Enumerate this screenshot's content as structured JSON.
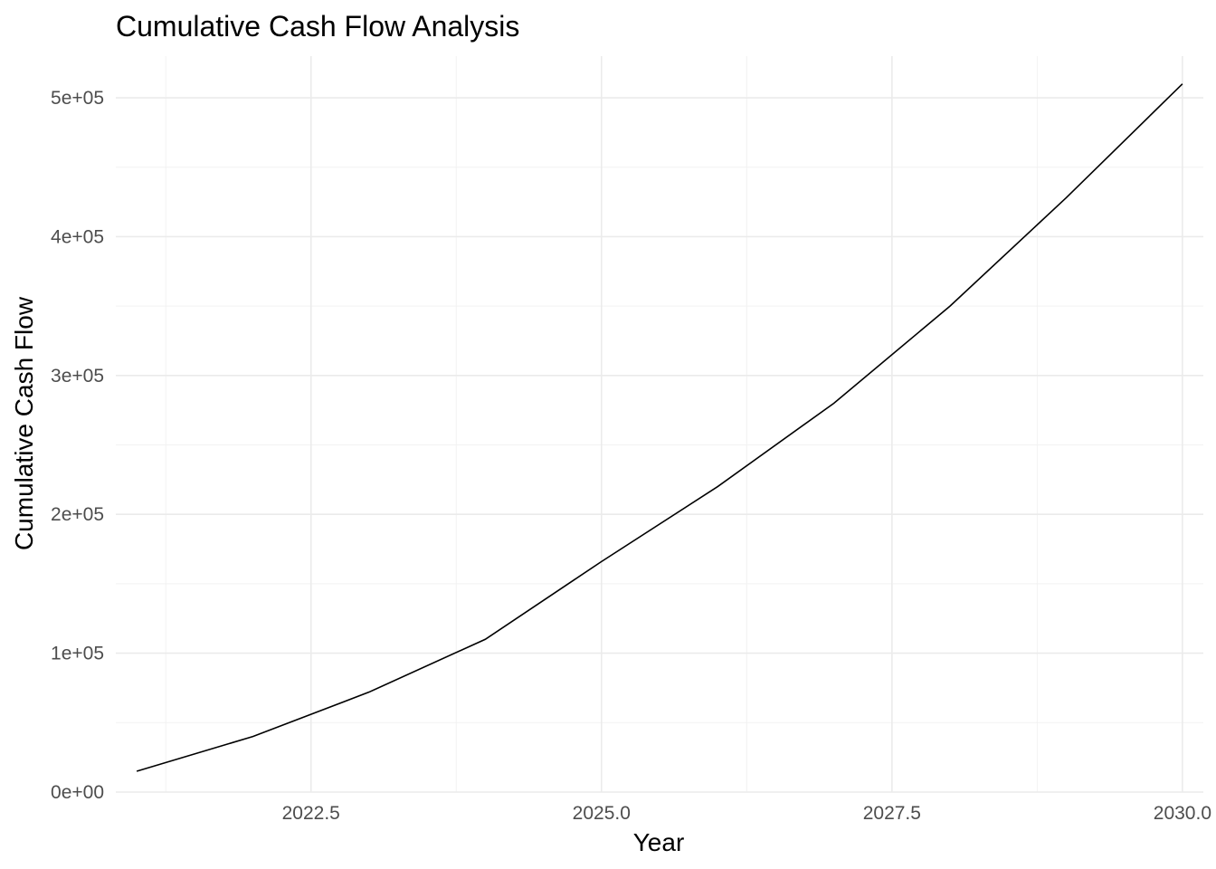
{
  "chart_data": {
    "type": "line",
    "title": "Cumulative Cash Flow Analysis",
    "xlabel": "Year",
    "ylabel": "Cumulative Cash Flow",
    "xlim": [
      2020.82,
      2030.18
    ],
    "ylim": [
      0,
      530000
    ],
    "x_ticks": [
      2022.5,
      2025.0,
      2027.5,
      2030.0
    ],
    "x_tick_labels": [
      "2022.5",
      "2025.0",
      "2027.5",
      "2030.0"
    ],
    "x_minor_ticks": [
      2021.25,
      2023.75,
      2026.25,
      2028.75
    ],
    "y_ticks": [
      0,
      100000,
      200000,
      300000,
      400000,
      500000
    ],
    "y_tick_labels": [
      "0e+00",
      "1e+05",
      "2e+05",
      "3e+05",
      "4e+05",
      "5e+05"
    ],
    "y_minor_ticks": [
      50000,
      150000,
      250000,
      350000,
      450000
    ],
    "grid": true,
    "legend": "none",
    "line_color": "#000000",
    "x": [
      2021,
      2022,
      2023,
      2024,
      2025,
      2026,
      2027,
      2028,
      2029,
      2030
    ],
    "values": [
      15000,
      40000,
      72000,
      110000,
      166000,
      220000,
      280000,
      350000,
      428000,
      510000
    ]
  }
}
